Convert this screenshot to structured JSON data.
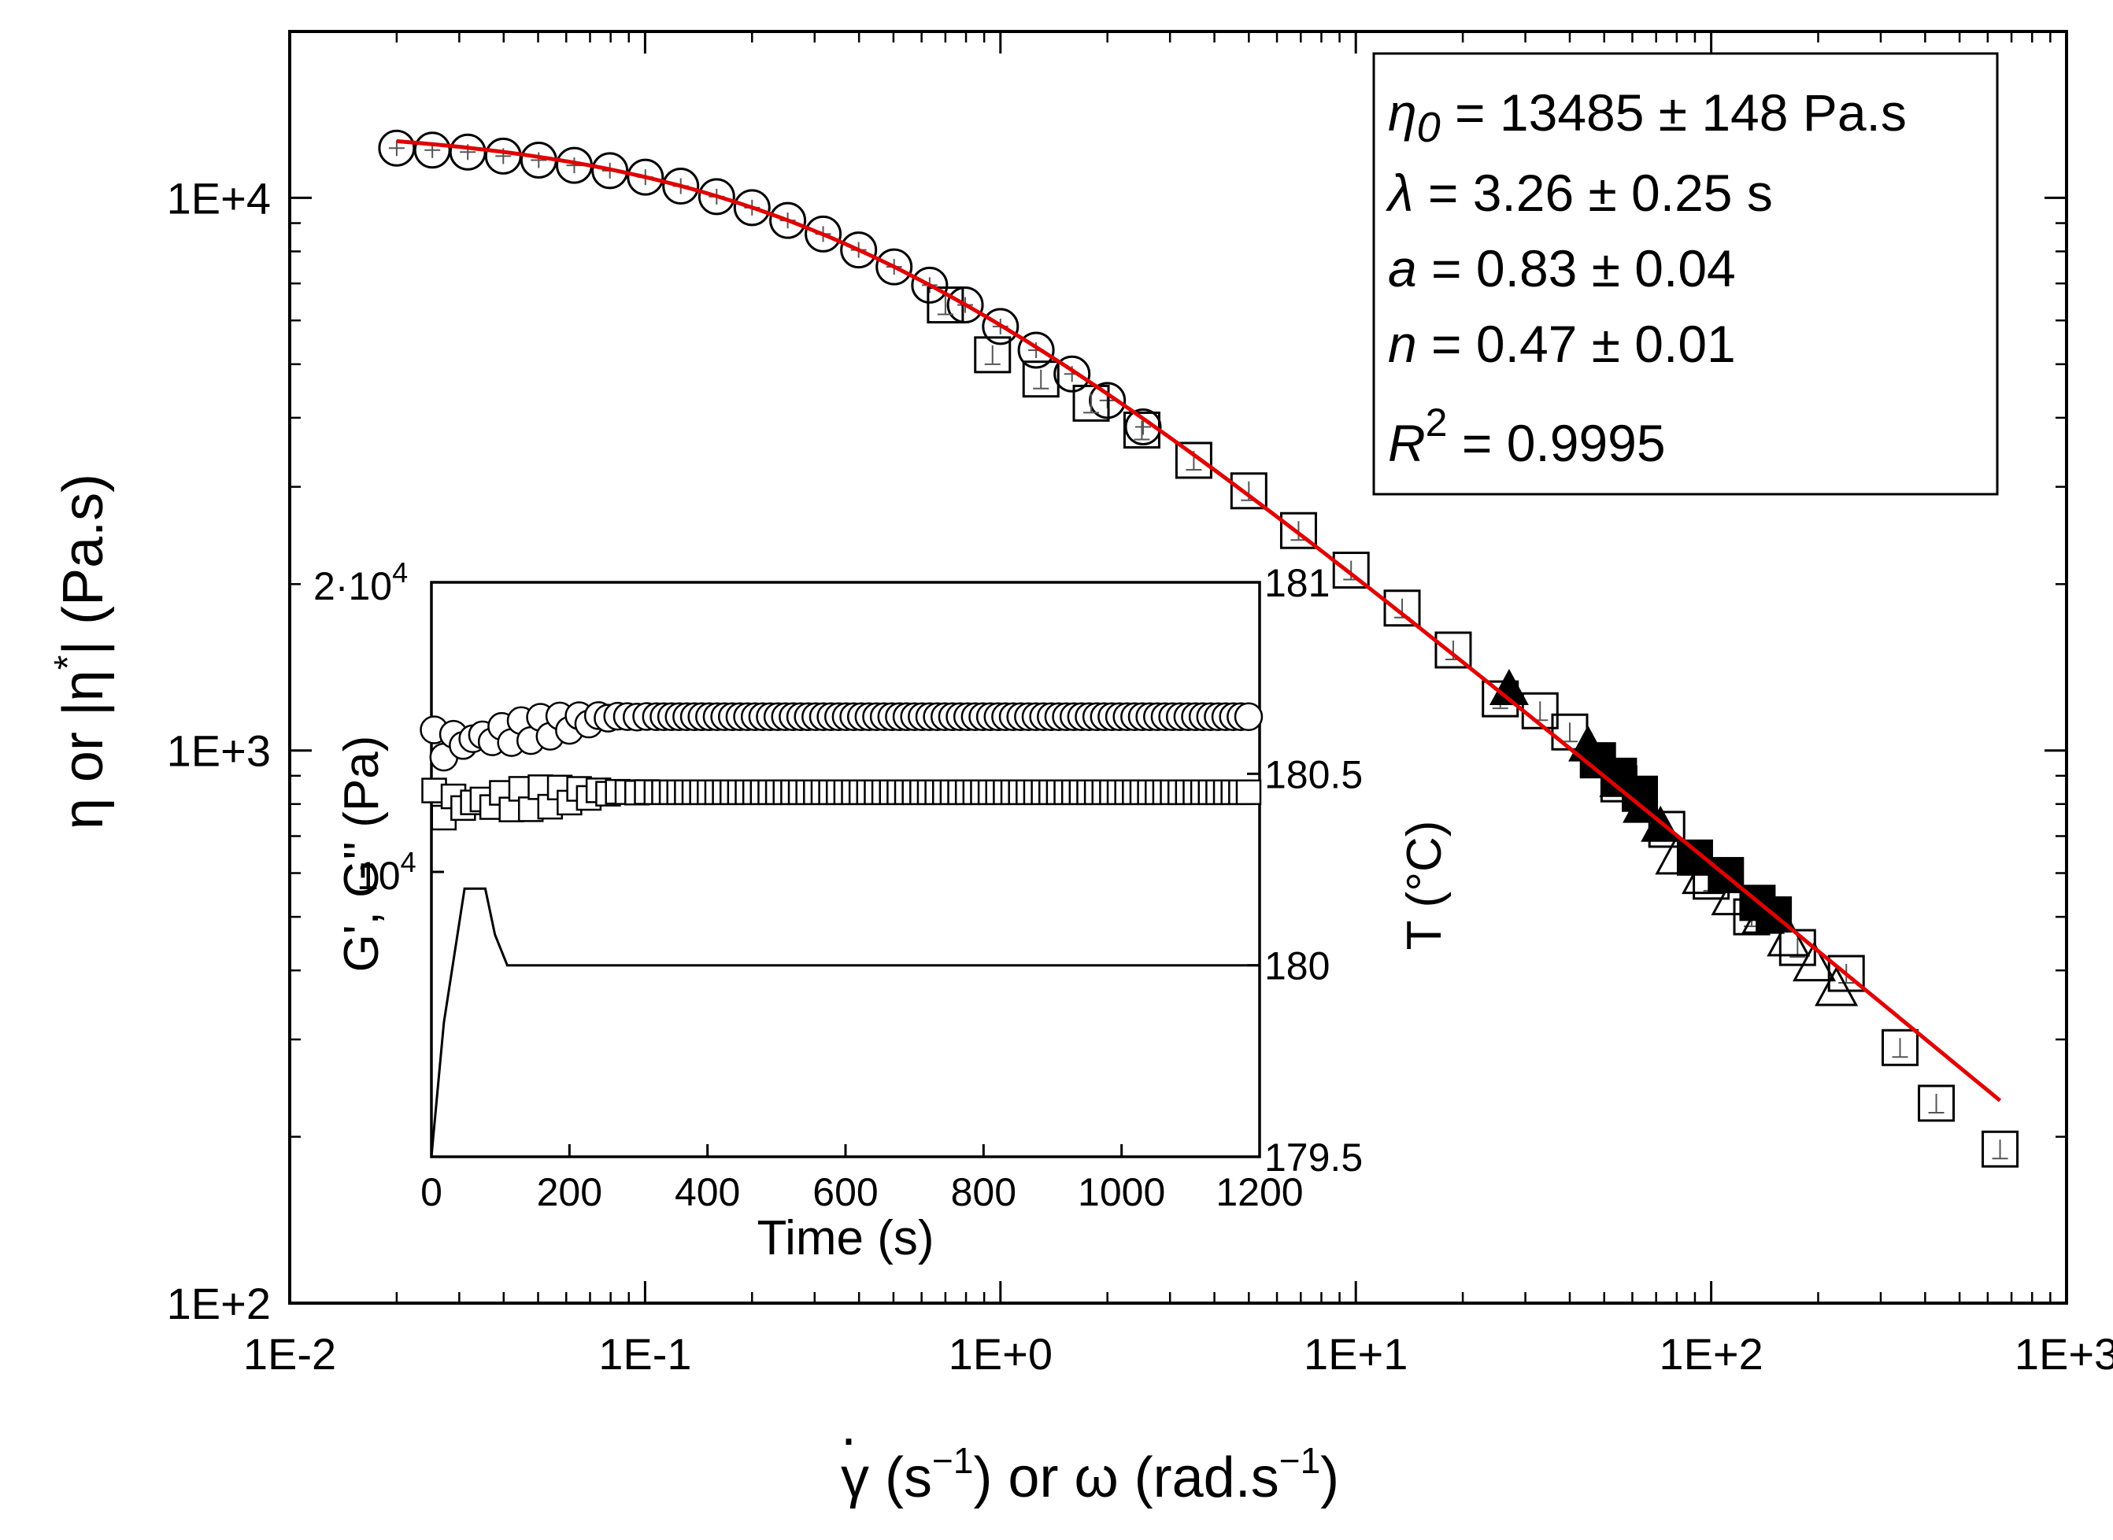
{
  "chart_data": [
    {
      "type": "scatter",
      "xscale": "log",
      "yscale": "log",
      "xlim": [
        0.01,
        1000
      ],
      "ylim": [
        100,
        20000
      ],
      "xtick_labels": [
        "1E-2",
        "1E-1",
        "1E+0",
        "1E+1",
        "1E+2",
        "1E+3"
      ],
      "ytick_labels": [
        "1E+2",
        "1E+3",
        "1E+4"
      ],
      "xlabel": {
        "dot": "·",
        "gamma": "γ",
        "p1": " (s",
        "exp1": "−1",
        "p2": ") or ω (rad.s",
        "exp2": "−1",
        "p3": ")"
      },
      "ylabel": {
        "p1": "η or |η",
        "sup": "*",
        "p2": "| (Pa.s)"
      },
      "series": [
        {
          "marker": "open-circle",
          "points": [
            [
              0.02,
              12300
            ],
            [
              0.0252,
              12200
            ],
            [
              0.0317,
              12100
            ],
            [
              0.0399,
              11900
            ],
            [
              0.0502,
              11700
            ],
            [
              0.0632,
              11450
            ],
            [
              0.0796,
              11200
            ],
            [
              0.1002,
              10900
            ],
            [
              0.126,
              10500
            ],
            [
              0.159,
              10050
            ],
            [
              0.2,
              9600
            ],
            [
              0.252,
              9100
            ],
            [
              0.317,
              8600
            ],
            [
              0.399,
              8050
            ],
            [
              0.502,
              7500
            ],
            [
              0.632,
              6950
            ],
            [
              0.796,
              6400
            ],
            [
              1.0,
              5850
            ],
            [
              1.26,
              5300
            ],
            [
              1.59,
              4800
            ],
            [
              2.0,
              4300
            ],
            [
              2.52,
              3850
            ]
          ]
        },
        {
          "marker": "open-square",
          "points": [
            [
              0.7,
              6400
            ],
            [
              0.95,
              5200
            ],
            [
              1.3,
              4700
            ],
            [
              1.8,
              4250
            ],
            [
              2.5,
              3800
            ],
            [
              3.5,
              3350
            ],
            [
              5.0,
              2950
            ],
            [
              6.9,
              2500
            ],
            [
              9.7,
              2120
            ],
            [
              13.5,
              1810
            ],
            [
              18.8,
              1520
            ],
            [
              25.5,
              1240
            ],
            [
              33,
              1180
            ],
            [
              40,
              1080
            ],
            [
              55,
              870
            ],
            [
              75,
              720
            ],
            [
              100,
              580
            ],
            [
              130,
              500
            ],
            [
              175,
              440
            ],
            [
              240,
              395
            ],
            [
              340,
              290
            ],
            [
              430,
              230
            ],
            [
              650,
              190
            ]
          ]
        },
        {
          "marker": "filled-triangle",
          "points": [
            [
              27,
              1290
            ],
            [
              45,
              1020
            ],
            [
              55,
              880
            ],
            [
              64,
              790
            ],
            [
              72,
              730
            ]
          ]
        },
        {
          "marker": "filled-square",
          "points": [
            [
              48,
              960
            ],
            [
              55,
              900
            ],
            [
              63,
              835
            ],
            [
              90,
              640
            ],
            [
              110,
              595
            ],
            [
              135,
              530
            ],
            [
              150,
              505
            ]
          ]
        },
        {
          "marker": "open-triangle",
          "points": [
            [
              80,
              640
            ],
            [
              95,
              590
            ],
            [
              115,
              540
            ],
            [
              140,
              500
            ],
            [
              165,
              455
            ],
            [
              195,
              410
            ],
            [
              225,
              370
            ]
          ]
        }
      ],
      "fit_curve": {
        "model": "Carreau-Yasuda",
        "color": "#e00000",
        "eta0": 13485,
        "lambda": 3.26,
        "a": 0.83,
        "n": 0.47,
        "xrange": [
          0.02,
          650
        ]
      },
      "annotations": {
        "eta0": {
          "sym": "η",
          "sub": "0",
          "text": " = 13485 ± 148 Pa.s"
        },
        "lambda": {
          "sym": "λ",
          "text": " = 3.26 ± 0.25 s"
        },
        "a": {
          "sym": "a",
          "text": " = 0.83 ± 0.04"
        },
        "n": {
          "sym": "n",
          "text": " = 0.47 ± 0.01"
        },
        "r2": {
          "sym": "R",
          "sup": "2",
          "text": " = 0.9995"
        }
      },
      "grid": false
    },
    {
      "type": "scatter",
      "role": "inset",
      "xlim": [
        0,
        1200
      ],
      "xticks": [
        0,
        200,
        400,
        600,
        800,
        1000,
        1200
      ],
      "xlabel": "Time (s)",
      "ylabel_left": "G', G'' (Pa)",
      "ylabel_right": "T (°C)",
      "left_ticks": [
        {
          "value": 20000,
          "label": "2·10",
          "exp": "4"
        },
        {
          "value": 10000,
          "label": "10",
          "exp": "4"
        }
      ],
      "ylim_right": [
        179.5,
        181
      ],
      "right_ticks": [
        "179.5",
        "180",
        "180.5",
        "181"
      ],
      "series": [
        {
          "name": "G'",
          "marker": "open-circle",
          "plateau": 14500,
          "start": 13500
        },
        {
          "name": "G''",
          "marker": "open-square",
          "plateau": 12100,
          "start": 11700
        },
        {
          "name": "T",
          "marker": "line",
          "points": [
            [
              0,
              179.3
            ],
            [
              18,
              179.85
            ],
            [
              48,
              180.2
            ],
            [
              78,
              180.2
            ],
            [
              92,
              180.08
            ],
            [
              110,
              180.0
            ],
            [
              1200,
              180.0
            ]
          ]
        }
      ]
    }
  ]
}
